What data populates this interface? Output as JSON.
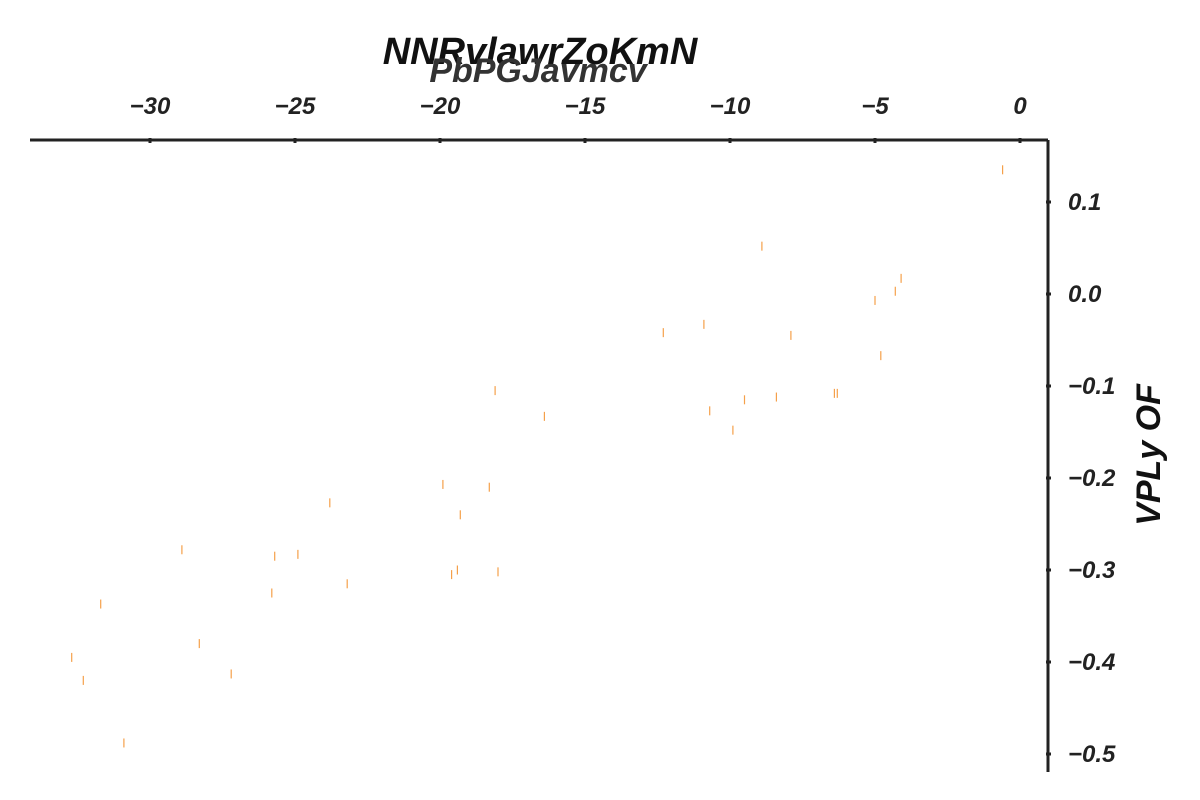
{
  "chart_data": {
    "type": "scatter",
    "title": "NNRvlawrZoKmN",
    "subtitle": "PbPGJavmcv",
    "xlabel": "",
    "ylabel": "VPLy OF",
    "x_axis_position": "top",
    "y_axis_position": "right",
    "xlim": [
      -34.2,
      1.0
    ],
    "ylim": [
      -0.52,
      0.168
    ],
    "x_ticks": [
      -30,
      -25,
      -20,
      -15,
      -10,
      -5,
      0
    ],
    "x_tick_labels": [
      "−30",
      "−25",
      "−20",
      "−15",
      "−10",
      "−5",
      "0"
    ],
    "y_ticks": [
      0.1,
      0.0,
      -0.1,
      -0.2,
      -0.3,
      -0.4,
      -0.5
    ],
    "y_tick_labels": [
      "0.1",
      "0.0",
      "−0.1",
      "−0.2",
      "−0.3",
      "−0.4",
      "−0.5"
    ],
    "grid": false,
    "marker": "vertical line",
    "point_color": "#f5a04a",
    "series": [
      {
        "x": [
          -0.6,
          -8.9,
          -4.1,
          -4.3,
          -5.0,
          -4.8,
          -12.3,
          -10.9,
          -7.9,
          -18.1,
          -16.4,
          -10.7,
          -9.5,
          -8.4,
          -6.4,
          -6.3,
          -9.9,
          -19.9,
          -18.3,
          -19.3,
          -23.8,
          -28.9,
          -25.7,
          -24.9,
          -23.2,
          -19.6,
          -19.4,
          -18.0,
          -25.8,
          -31.7,
          -28.3,
          -27.2,
          -32.7,
          -32.3,
          -30.9
        ],
        "y": [
          0.135,
          0.052,
          0.017,
          0.003,
          -0.007,
          -0.067,
          -0.042,
          -0.033,
          -0.045,
          -0.105,
          -0.133,
          -0.127,
          -0.115,
          -0.112,
          -0.108,
          -0.108,
          -0.148,
          -0.207,
          -0.21,
          -0.24,
          -0.227,
          -0.278,
          -0.285,
          -0.283,
          -0.315,
          -0.305,
          -0.3,
          -0.302,
          -0.325,
          -0.337,
          -0.38,
          -0.413,
          -0.395,
          -0.42,
          -0.488
        ]
      }
    ]
  }
}
